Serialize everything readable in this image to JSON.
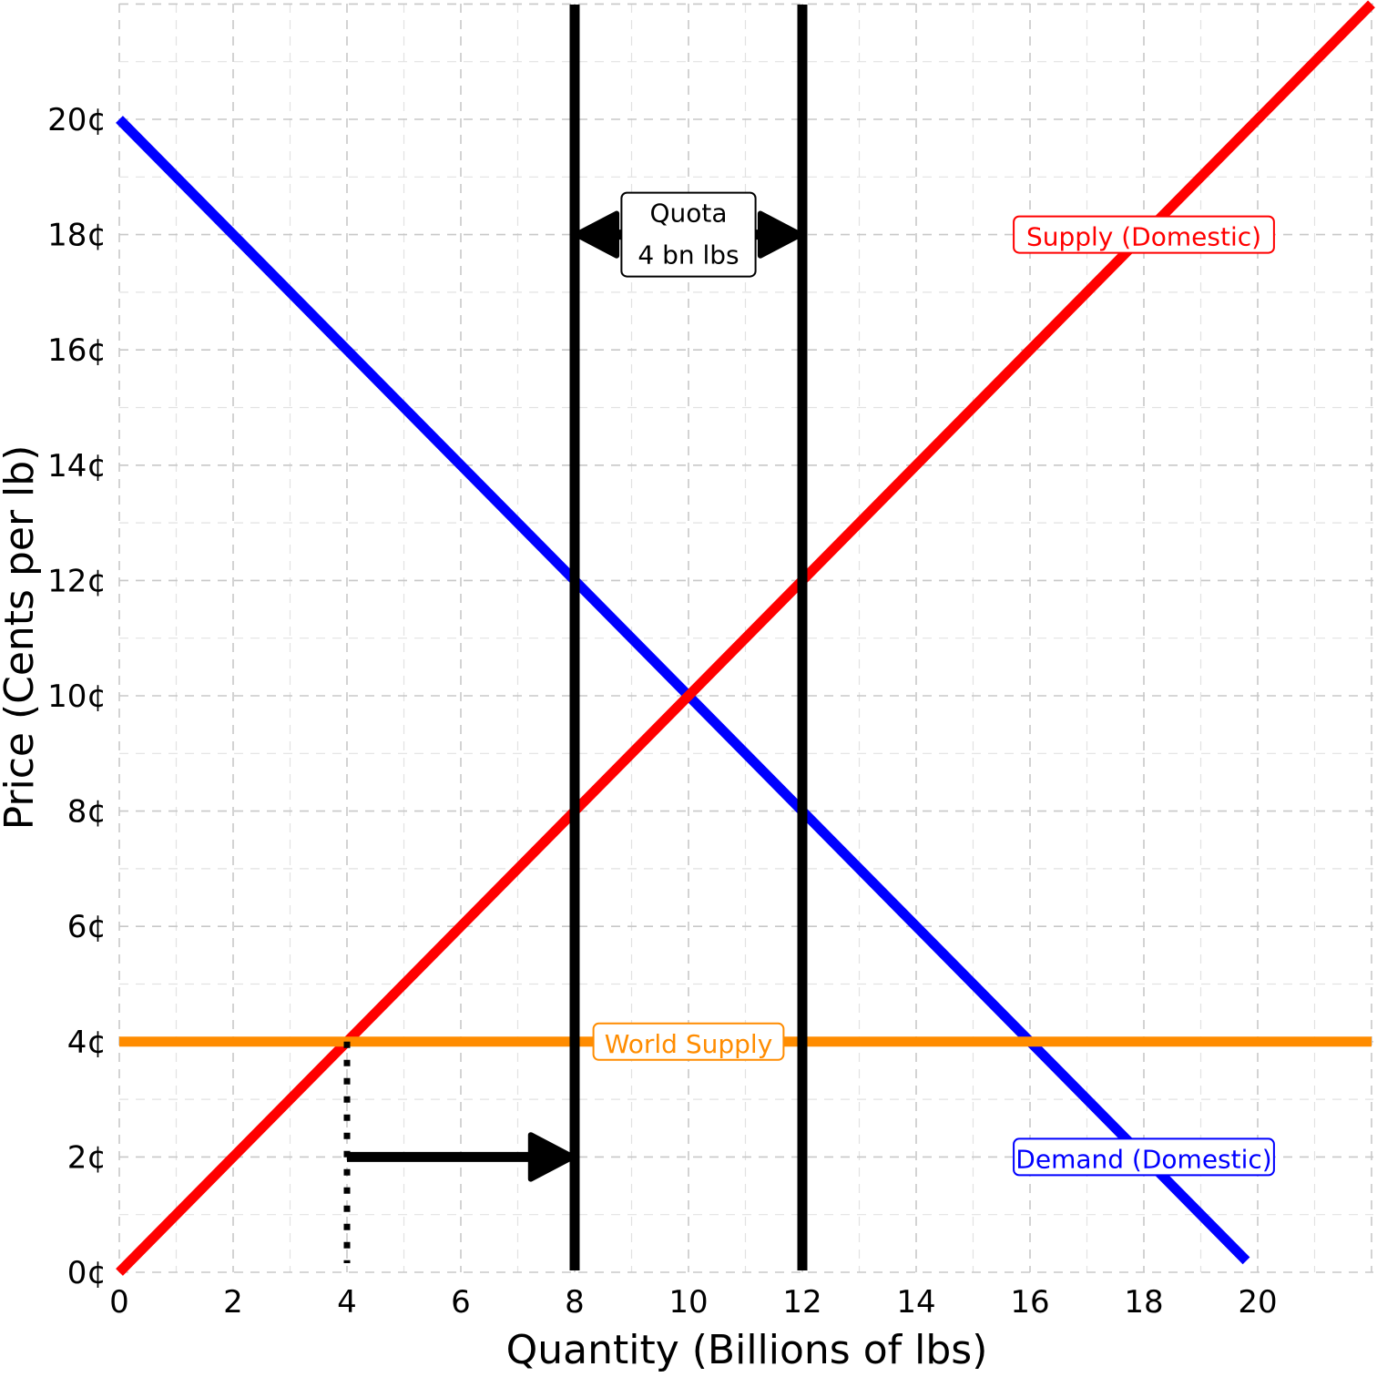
{
  "chart_data": {
    "type": "line",
    "title": "",
    "xlabel": "Quantity (Billions of lbs)",
    "ylabel": "Price (Cents per lb)",
    "xlim": [
      0,
      22
    ],
    "ylim": [
      0,
      22
    ],
    "x_ticks": [
      0,
      2,
      4,
      6,
      8,
      10,
      12,
      14,
      16,
      18,
      20
    ],
    "x_tick_labels": [
      "0",
      "2",
      "4",
      "6",
      "8",
      "10",
      "12",
      "14",
      "16",
      "18",
      "20"
    ],
    "y_ticks": [
      0,
      2,
      4,
      6,
      8,
      10,
      12,
      14,
      16,
      18,
      20
    ],
    "y_tick_labels": [
      "0¢",
      "2¢",
      "4¢",
      "6¢",
      "8¢",
      "10¢",
      "12¢",
      "14¢",
      "16¢",
      "18¢",
      "20¢"
    ],
    "grid": true,
    "series": [
      {
        "name": "Demand (Domestic)",
        "color": "#0000ff",
        "points": [
          [
            0,
            20
          ],
          [
            19.8,
            0.2
          ]
        ]
      },
      {
        "name": "Supply (Domestic)",
        "color": "#ff0000",
        "points": [
          [
            0,
            0
          ],
          [
            22,
            22
          ]
        ]
      },
      {
        "name": "World Supply",
        "color": "#ff8c00",
        "points": [
          [
            0,
            4
          ],
          [
            22,
            4
          ]
        ]
      }
    ],
    "vertical_lines": [
      {
        "x": 8,
        "color": "#000000"
      },
      {
        "x": 12,
        "color": "#000000"
      }
    ],
    "annotations": [
      {
        "id": "quota",
        "lines": [
          "Quota",
          "4 bn lbs"
        ],
        "x": 10,
        "y": 18,
        "color": "#000000"
      },
      {
        "id": "supply",
        "lines": [
          "Supply (Domestic)"
        ],
        "x": 18,
        "y": 18,
        "color": "#ff0000"
      },
      {
        "id": "world",
        "lines": [
          "World Supply"
        ],
        "x": 10,
        "y": 4,
        "color": "#ff8c00"
      },
      {
        "id": "demand",
        "lines": [
          "Demand (Domestic)"
        ],
        "x": 18,
        "y": 2,
        "color": "#0000ff"
      }
    ],
    "arrows": [
      {
        "id": "quota-arrow",
        "from": [
          10,
          18
        ],
        "to": [
          8,
          18
        ],
        "both_ends": true,
        "other_end": [
          12,
          18
        ]
      },
      {
        "id": "shift-arrow",
        "from": [
          4,
          2
        ],
        "to": [
          8,
          2
        ],
        "both_ends": false
      }
    ],
    "dotted_lines": [
      {
        "id": "import-guide",
        "from": [
          4,
          4
        ],
        "to": [
          4,
          0
        ]
      }
    ]
  }
}
